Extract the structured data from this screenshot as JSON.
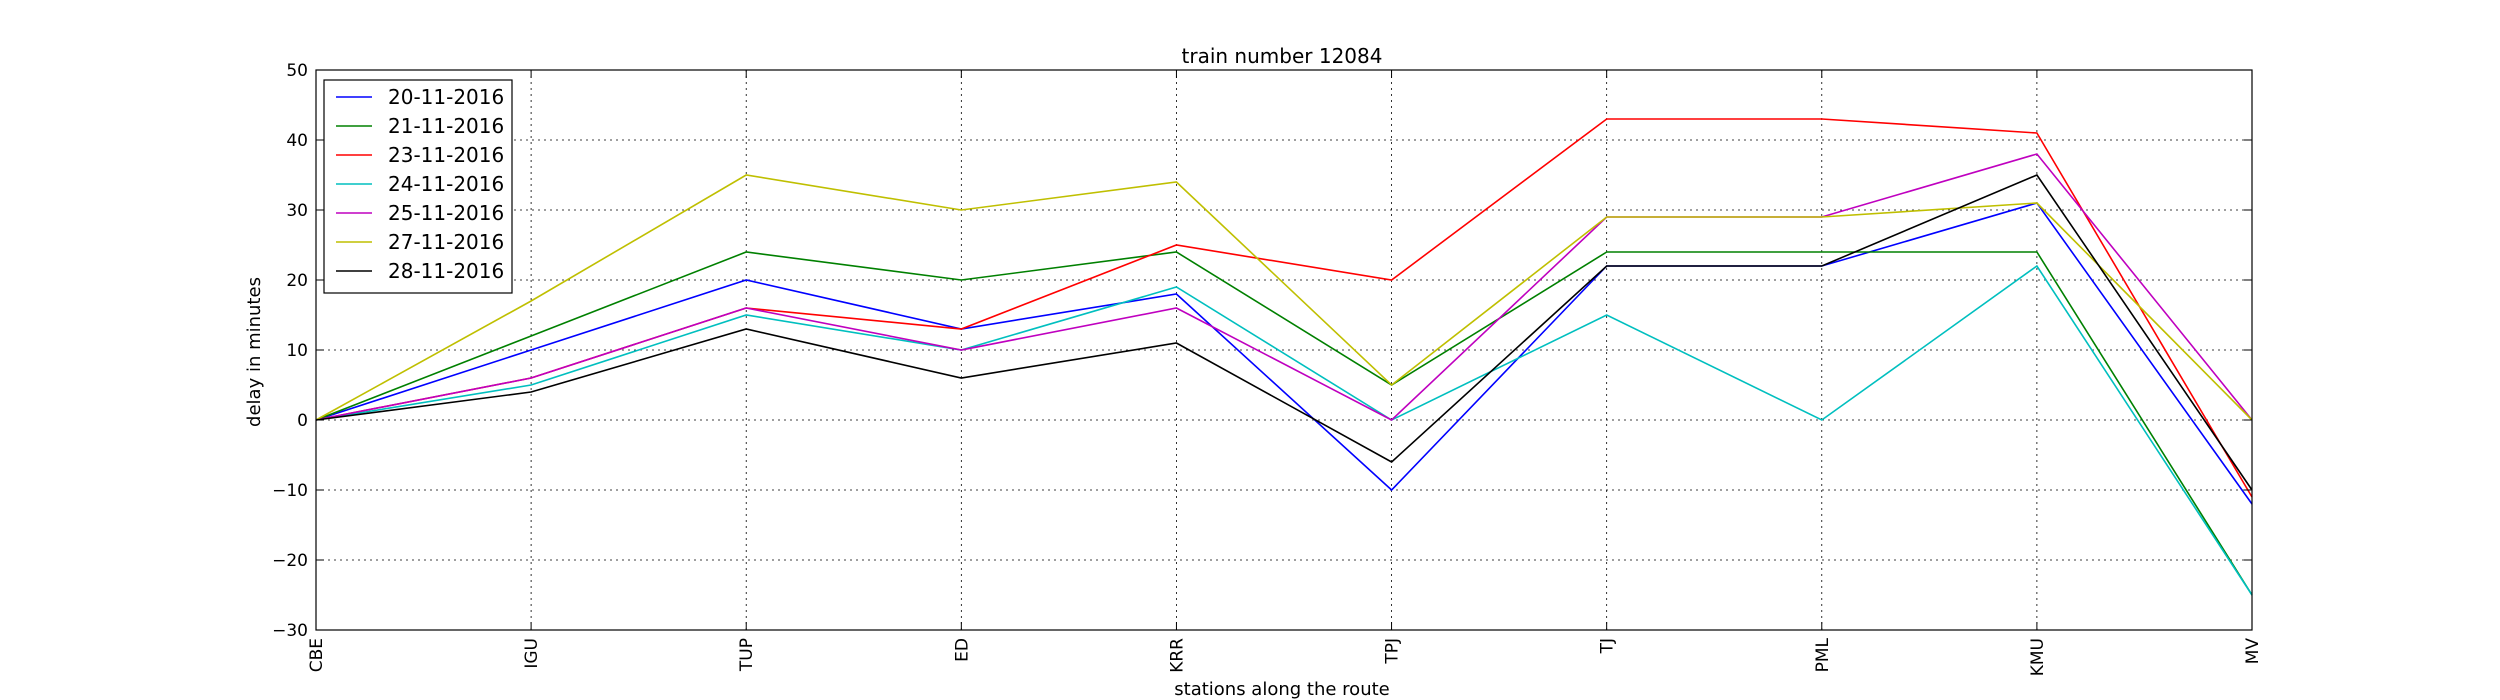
{
  "chart_data": {
    "type": "line",
    "title": "train number 12084",
    "xlabel": "stations along the route",
    "ylabel": "delay in minutes",
    "categories": [
      "CBE",
      "IGU",
      "TUP",
      "ED",
      "KRR",
      "TPJ",
      "TJ",
      "PML",
      "KMU",
      "MV"
    ],
    "ylim": [
      -30,
      50
    ],
    "yticks": [
      -30,
      -20,
      -10,
      0,
      10,
      20,
      30,
      40,
      50
    ],
    "ytick_labels": [
      "−30",
      "−20",
      "−10",
      "0",
      "10",
      "20",
      "30",
      "40",
      "50"
    ],
    "grid": true,
    "legend_position": "top-left",
    "series": [
      {
        "name": "20-11-2016",
        "color": "#0000ff",
        "values": [
          0,
          10,
          20,
          13,
          18,
          -10,
          22,
          22,
          31,
          -12
        ]
      },
      {
        "name": "21-11-2016",
        "color": "#008000",
        "values": [
          0,
          12,
          24,
          20,
          24,
          5,
          24,
          24,
          24,
          -25
        ]
      },
      {
        "name": "23-11-2016",
        "color": "#ff0000",
        "values": [
          0,
          6,
          16,
          13,
          25,
          20,
          43,
          43,
          41,
          -11
        ]
      },
      {
        "name": "24-11-2016",
        "color": "#00bfbf",
        "values": [
          0,
          5,
          15,
          10,
          19,
          0,
          15,
          0,
          22,
          -25
        ]
      },
      {
        "name": "25-11-2016",
        "color": "#bf00bf",
        "values": [
          0,
          6,
          16,
          10,
          16,
          0,
          29,
          29,
          38,
          0
        ]
      },
      {
        "name": "27-11-2016",
        "color": "#bfbf00",
        "values": [
          0,
          17,
          35,
          30,
          34,
          5,
          29,
          29,
          31,
          0
        ]
      },
      {
        "name": "28-11-2016",
        "color": "#000000",
        "values": [
          0,
          4,
          13,
          6,
          11,
          -6,
          22,
          22,
          35,
          -10
        ]
      }
    ]
  }
}
